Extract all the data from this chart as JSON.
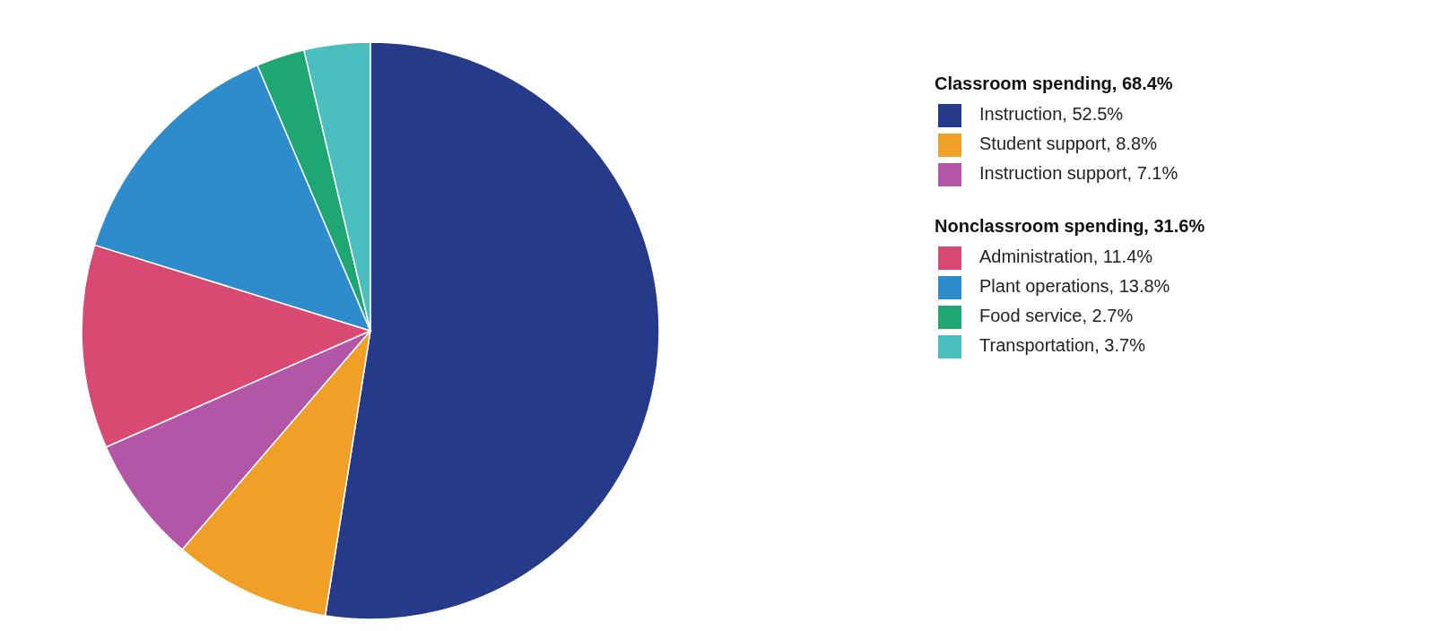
{
  "chart_data": {
    "type": "pie",
    "categories": [
      "Instruction, 52.5%",
      "Student support, 8.8%",
      "Instruction support, 7.1%",
      "Administration, 11.4%",
      "Plant operations, 13.8%",
      "Food service, 2.7%",
      "Transportation, 3.7%"
    ],
    "values": [
      52.5,
      8.8,
      7.1,
      11.4,
      13.8,
      2.7,
      3.7
    ],
    "colors": [
      "#263a8a",
      "#f0a027",
      "#b356a7",
      "#d94a72",
      "#2f8ccc",
      "#1ea673",
      "#4bbfbf"
    ],
    "annotations": [
      "Classroom spending, 68.4%",
      "Nonclassroom spending, 31.6%"
    ],
    "legend": "right"
  }
}
